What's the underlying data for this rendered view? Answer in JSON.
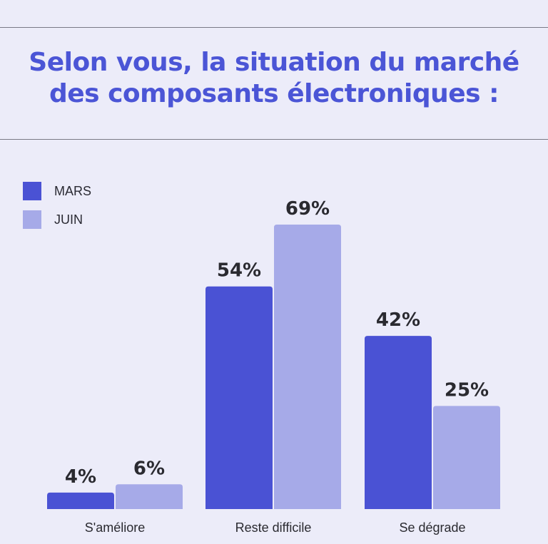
{
  "title_line1": "Selon vous, la situation du marché",
  "title_line2": "des composants électroniques :",
  "legend": [
    {
      "label": "MARS",
      "color": "#4a52d4"
    },
    {
      "label": "JUIN",
      "color": "#a6aae8"
    }
  ],
  "chart_data": {
    "type": "bar",
    "title": "Selon vous, la situation du marché des composants électroniques :",
    "categories": [
      "S'améliore",
      "Reste difficile",
      "Se dégrade"
    ],
    "series": [
      {
        "name": "MARS",
        "values": [
          4,
          54,
          42
        ],
        "labels": [
          "4%",
          "54%",
          "42%"
        ],
        "color": "#4a52d4"
      },
      {
        "name": "JUIN",
        "values": [
          6,
          69,
          25
        ],
        "labels": [
          "6%",
          "69%",
          "25%"
        ],
        "color": "#a6aae8"
      }
    ],
    "unit": "%",
    "ylim": [
      0,
      69
    ],
    "grid": false,
    "legend_position": "top-left"
  }
}
